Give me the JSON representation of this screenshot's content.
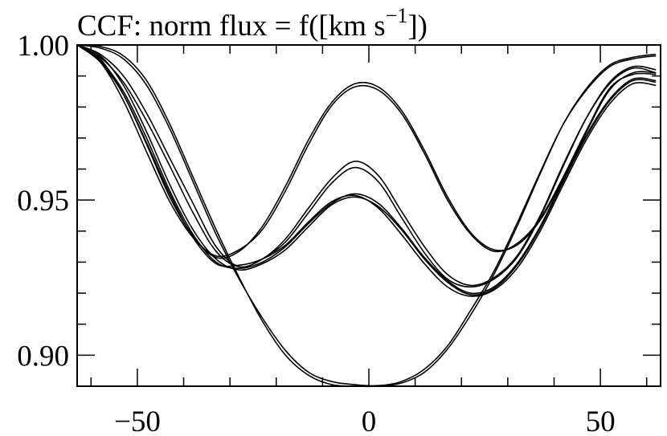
{
  "chart_data": {
    "type": "line",
    "title_main": "CCF: norm flux = f([km s",
    "title_sup": "−1",
    "title_end": "])",
    "xlim": [
      -63,
      63
    ],
    "ylim": [
      0.89,
      1.0
    ],
    "xticks_major": [
      {
        "v": -50,
        "label": "−50"
      },
      {
        "v": 0,
        "label": "0"
      },
      {
        "v": 50,
        "label": "50"
      }
    ],
    "yticks_major": [
      {
        "v": 1.0,
        "label": "1.00"
      },
      {
        "v": 0.95,
        "label": "0.95"
      },
      {
        "v": 0.9,
        "label": "0.90"
      }
    ],
    "x_minor_step": 10,
    "y_minor_step": 0.01,
    "line_color": "#000000",
    "series": [
      {
        "x": [
          -63,
          -58,
          -53,
          -48,
          -43,
          -38,
          -33,
          -28,
          -23,
          -18,
          -13,
          -8,
          -3,
          2,
          7,
          12,
          17,
          22,
          27,
          32,
          37,
          42,
          47,
          52,
          57,
          62
        ],
        "y": [
          1.0,
          0.9955,
          0.984,
          0.968,
          0.951,
          0.9385,
          0.9315,
          0.9335,
          0.9415,
          0.9545,
          0.9695,
          0.9815,
          0.9875,
          0.9865,
          0.979,
          0.966,
          0.951,
          0.9395,
          0.934,
          0.9355,
          0.9435,
          0.957,
          0.972,
          0.9855,
          0.991,
          0.991
        ]
      },
      {
        "x": [
          -63,
          -58,
          -53,
          -48,
          -43,
          -38,
          -33,
          -28,
          -23,
          -18,
          -13,
          -8,
          -3,
          2,
          7,
          12,
          17,
          22,
          27,
          32,
          37,
          42,
          47,
          52,
          57,
          62
        ],
        "y": [
          1.0,
          0.9945,
          0.982,
          0.9655,
          0.9495,
          0.938,
          0.932,
          0.934,
          0.9405,
          0.953,
          0.968,
          0.9805,
          0.9865,
          0.9855,
          0.978,
          0.965,
          0.95,
          0.939,
          0.9335,
          0.936,
          0.944,
          0.9575,
          0.9725,
          0.986,
          0.9905,
          0.9905
        ]
      },
      {
        "x": [
          -63,
          -58,
          -53,
          -48,
          -43,
          -38,
          -33,
          -28,
          -23,
          -18,
          -13,
          -8,
          -3,
          2,
          7,
          12,
          17,
          22,
          27,
          32,
          37,
          42,
          47,
          52,
          57,
          62
        ],
        "y": [
          1.0,
          0.997,
          0.99,
          0.978,
          0.9635,
          0.949,
          0.935,
          0.9285,
          0.931,
          0.9365,
          0.946,
          0.9555,
          0.9605,
          0.956,
          0.9445,
          0.933,
          0.9245,
          0.922,
          0.9245,
          0.9315,
          0.9445,
          0.961,
          0.9765,
          0.988,
          0.993,
          0.992
        ]
      },
      {
        "x": [
          -63,
          -58,
          -53,
          -48,
          -43,
          -38,
          -33,
          -28,
          -23,
          -18,
          -13,
          -8,
          -3,
          2,
          7,
          12,
          17,
          22,
          27,
          32,
          37,
          42,
          47,
          52,
          57,
          62
        ],
        "y": [
          1.0,
          0.996,
          0.988,
          0.9755,
          0.961,
          0.946,
          0.9335,
          0.9285,
          0.931,
          0.9375,
          0.9475,
          0.957,
          0.9625,
          0.958,
          0.9465,
          0.935,
          0.926,
          0.9225,
          0.925,
          0.932,
          0.945,
          0.9615,
          0.9765,
          0.9875,
          0.9925,
          0.991
        ]
      },
      {
        "x": [
          -63,
          -58,
          -53,
          -48,
          -43,
          -38,
          -33,
          -28,
          -23,
          -18,
          -13,
          -8,
          -3,
          2,
          7,
          12,
          17,
          22,
          27,
          32,
          37,
          42,
          47,
          52,
          57,
          62
        ],
        "y": [
          1.0,
          0.9965,
          0.987,
          0.972,
          0.955,
          0.9405,
          0.931,
          0.9275,
          0.9295,
          0.934,
          0.9415,
          0.9485,
          0.951,
          0.948,
          0.9405,
          0.931,
          0.9235,
          0.9195,
          0.9215,
          0.929,
          0.941,
          0.956,
          0.9705,
          0.982,
          0.9885,
          0.988
        ]
      },
      {
        "x": [
          -63,
          -58,
          -53,
          -48,
          -43,
          -38,
          -33,
          -28,
          -23,
          -18,
          -13,
          -8,
          -3,
          2,
          7,
          12,
          17,
          22,
          27,
          32,
          37,
          42,
          47,
          52,
          57,
          62
        ],
        "y": [
          1.0,
          0.995,
          0.985,
          0.97,
          0.953,
          0.939,
          0.93,
          0.928,
          0.93,
          0.935,
          0.9425,
          0.949,
          0.952,
          0.949,
          0.941,
          0.9315,
          0.924,
          0.92,
          0.922,
          0.9295,
          0.9415,
          0.9565,
          0.971,
          0.9825,
          0.989,
          0.9885
        ]
      },
      {
        "x": [
          -63,
          -58,
          -53,
          -48,
          -43,
          -38,
          -33,
          -28,
          -23,
          -18,
          -13,
          -8,
          -3,
          2,
          7,
          12,
          17,
          22,
          27,
          32,
          37,
          42,
          47,
          52,
          57,
          62
        ],
        "y": [
          1.0,
          0.9945,
          0.984,
          0.9685,
          0.952,
          0.938,
          0.9295,
          0.929,
          0.931,
          0.9355,
          0.943,
          0.9495,
          0.9515,
          0.9475,
          0.939,
          0.9295,
          0.922,
          0.919,
          0.921,
          0.928,
          0.94,
          0.955,
          0.9695,
          0.981,
          0.9875,
          0.987
        ]
      },
      {
        "x": [
          -63,
          -58,
          -53,
          -48,
          -43,
          -38,
          -33,
          -28,
          -23,
          -18,
          -13,
          -8,
          -3,
          2,
          7,
          12,
          17,
          22,
          27,
          32,
          37,
          42,
          47,
          52,
          57,
          62
        ],
        "y": [
          1.0,
          0.9995,
          0.9965,
          0.9885,
          0.9745,
          0.9575,
          0.9405,
          0.925,
          0.911,
          0.9,
          0.8935,
          0.8905,
          0.89,
          0.89,
          0.891,
          0.8945,
          0.902,
          0.913,
          0.926,
          0.9415,
          0.9585,
          0.9745,
          0.986,
          0.9935,
          0.996,
          0.997
        ]
      },
      {
        "x": [
          -63,
          -58,
          -53,
          -48,
          -43,
          -38,
          -33,
          -28,
          -23,
          -18,
          -13,
          -8,
          -3,
          2,
          7,
          12,
          17,
          22,
          27,
          32,
          37,
          42,
          47,
          52,
          57,
          62
        ],
        "y": [
          1.0,
          0.999,
          0.9955,
          0.987,
          0.973,
          0.956,
          0.939,
          0.9245,
          0.912,
          0.9015,
          0.8945,
          0.8915,
          0.8905,
          0.8902,
          0.8915,
          0.8955,
          0.903,
          0.9145,
          0.927,
          0.9425,
          0.959,
          0.9745,
          0.9855,
          0.993,
          0.9955,
          0.9965
        ]
      }
    ]
  }
}
